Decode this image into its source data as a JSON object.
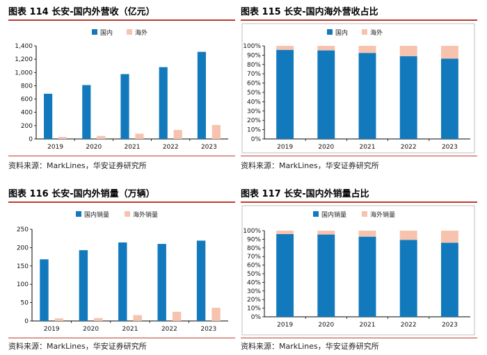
{
  "panels": [
    {
      "title": "图表 114  长安-国内外营收（亿元）",
      "source": "资料来源：MarkLines，华安证券研究所",
      "legend": [
        "国内",
        "海外"
      ]
    },
    {
      "title": "图表 115  长安-国内海外营收占比",
      "source": "资料来源：MarkLines，华安证券研究所",
      "legend": [
        "国内",
        "海外"
      ]
    },
    {
      "title": "图表 116  长安-国内外销量（万辆）",
      "source": "资料来源：MarkLines，华安证券研究所",
      "legend": [
        "国内销量",
        "海外销量"
      ]
    },
    {
      "title": "图表 117  长安-国内外销量占比",
      "source": "资料来源：MarkLines，华安证券研究所",
      "legend": [
        "国内销量",
        "海外销量"
      ]
    }
  ],
  "colors": {
    "domestic": "#1279bd",
    "overseas": "#f7c2ae",
    "rule": "#c0392b"
  },
  "chart_data": [
    {
      "type": "bar",
      "title": "图表 114  长安-国内外营收（亿元）",
      "categories": [
        "2019",
        "2020",
        "2021",
        "2022",
        "2023"
      ],
      "series": [
        {
          "name": "国内",
          "values": [
            680,
            810,
            975,
            1080,
            1310
          ]
        },
        {
          "name": "海外",
          "values": [
            30,
            45,
            80,
            135,
            210
          ]
        }
      ],
      "ylim": [
        0,
        1400
      ],
      "yticks": [
        "0",
        "200",
        "400",
        "600",
        "800",
        "1,000",
        "1,200",
        "1,400"
      ],
      "legend_position": "top"
    },
    {
      "type": "bar",
      "stacked": true,
      "title": "图表 115  长安-国内海外营收占比",
      "categories": [
        "2019",
        "2020",
        "2021",
        "2022",
        "2023"
      ],
      "series": [
        {
          "name": "国内",
          "values": [
            95.7,
            95.1,
            92.4,
            88.9,
            86.2
          ]
        },
        {
          "name": "海外",
          "values": [
            4.3,
            4.9,
            7.6,
            11.1,
            13.8
          ]
        }
      ],
      "ylim": [
        0,
        100
      ],
      "yticks": [
        "0%",
        "10%",
        "20%",
        "30%",
        "40%",
        "50%",
        "60%",
        "70%",
        "80%",
        "90%",
        "100%"
      ],
      "legend_position": "top"
    },
    {
      "type": "bar",
      "title": "图表 116  长安-国内外销量（万辆）",
      "categories": [
        "2019",
        "2020",
        "2021",
        "2022",
        "2023"
      ],
      "series": [
        {
          "name": "国内销量",
          "values": [
            168,
            193,
            214,
            210,
            219
          ]
        },
        {
          "name": "海外销量",
          "values": [
            7,
            8,
            16,
            25,
            36
          ]
        }
      ],
      "ylim": [
        0,
        250
      ],
      "yticks": [
        "0",
        "50",
        "100",
        "150",
        "200",
        "250"
      ],
      "legend_position": "top"
    },
    {
      "type": "bar",
      "stacked": true,
      "title": "图表 117  长安-国内外销量占比",
      "categories": [
        "2019",
        "2020",
        "2021",
        "2022",
        "2023"
      ],
      "series": [
        {
          "name": "国内销量",
          "values": [
            96,
            95.5,
            93,
            89.3,
            86
          ]
        },
        {
          "name": "海外销量",
          "values": [
            4,
            4.5,
            7,
            10.7,
            14
          ]
        }
      ],
      "ylim": [
        0,
        100
      ],
      "yticks": [
        "0%",
        "10%",
        "20%",
        "30%",
        "40%",
        "50%",
        "60%",
        "70%",
        "80%",
        "90%",
        "100%"
      ],
      "legend_position": "top"
    }
  ]
}
